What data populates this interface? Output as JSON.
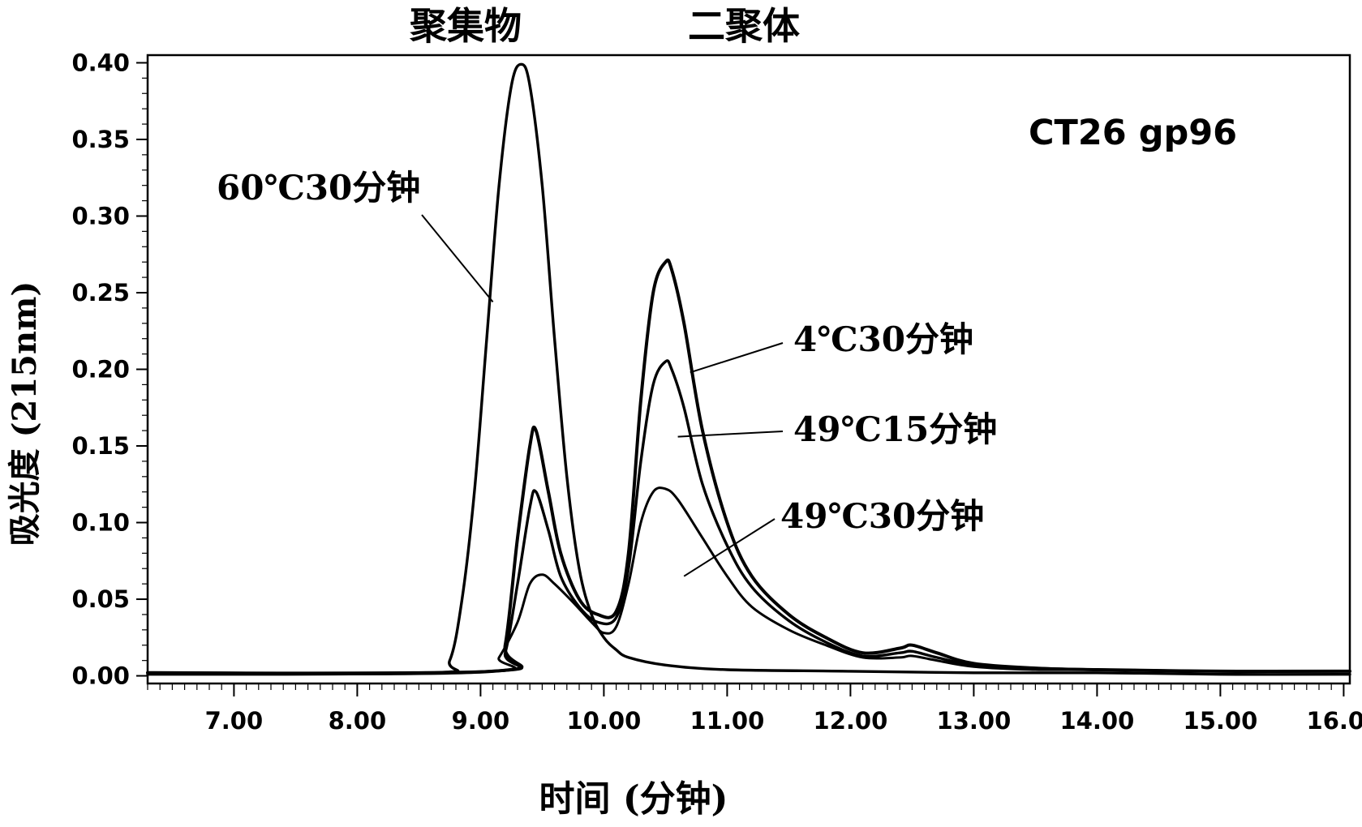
{
  "chart_data": {
    "type": "line",
    "top_labels": [
      "聚集物",
      "二聚体"
    ],
    "annotation": "CT26 gp96",
    "xlabel": "时间 (分钟)",
    "ylabel": "吸光度 (215nm)",
    "xlim": [
      6.3,
      16.05
    ],
    "ylim": [
      -0.005,
      0.405
    ],
    "xticks": [
      7.0,
      8.0,
      9.0,
      10.0,
      11.0,
      12.0,
      13.0,
      14.0,
      15.0,
      16.0
    ],
    "xtick_labels": [
      "7.00",
      "8.00",
      "9.00",
      "10.00",
      "11.00",
      "12.00",
      "13.00",
      "14.00",
      "15.00",
      "16.00"
    ],
    "yticks": [
      0.0,
      0.05,
      0.1,
      0.15,
      0.2,
      0.25,
      0.3,
      0.35,
      0.4
    ],
    "ytick_labels": [
      "0.00",
      "0.05",
      "0.10",
      "0.15",
      "0.20",
      "0.25",
      "0.30",
      "0.35",
      "0.40"
    ],
    "grid": false,
    "legend": "none",
    "series": [
      {
        "name": "60℃30分钟",
        "x": [
          6.3,
          8.6,
          8.75,
          8.85,
          8.95,
          9.05,
          9.15,
          9.25,
          9.33,
          9.4,
          9.5,
          9.6,
          9.7,
          9.8,
          9.9,
          10.0,
          10.1,
          10.2,
          10.5,
          11.0,
          12.0,
          13.0,
          14.0,
          15.0,
          16.05
        ],
        "y": [
          0.001,
          0.002,
          0.01,
          0.05,
          0.12,
          0.22,
          0.32,
          0.385,
          0.399,
          0.385,
          0.32,
          0.22,
          0.13,
          0.07,
          0.04,
          0.025,
          0.017,
          0.012,
          0.007,
          0.004,
          0.003,
          0.002,
          0.002,
          0.001,
          0.001
        ]
      },
      {
        "name": "4℃30分钟",
        "x": [
          6.3,
          9.1,
          9.2,
          9.3,
          9.4,
          9.45,
          9.55,
          9.65,
          9.8,
          9.95,
          10.1,
          10.2,
          10.3,
          10.4,
          10.5,
          10.55,
          10.65,
          10.8,
          11.0,
          11.2,
          11.5,
          11.8,
          12.1,
          12.4,
          12.5,
          12.7,
          13.0,
          13.5,
          14.0,
          15.0,
          16.05
        ],
        "y": [
          0.002,
          0.003,
          0.02,
          0.09,
          0.15,
          0.16,
          0.12,
          0.08,
          0.05,
          0.04,
          0.042,
          0.08,
          0.18,
          0.25,
          0.27,
          0.265,
          0.23,
          0.16,
          0.1,
          0.065,
          0.04,
          0.025,
          0.015,
          0.018,
          0.02,
          0.015,
          0.008,
          0.005,
          0.004,
          0.003,
          0.003
        ]
      },
      {
        "name": "49℃15分钟",
        "x": [
          6.3,
          9.1,
          9.2,
          9.3,
          9.4,
          9.45,
          9.55,
          9.65,
          9.8,
          9.95,
          10.1,
          10.2,
          10.3,
          10.4,
          10.5,
          10.55,
          10.65,
          10.8,
          11.0,
          11.2,
          11.5,
          11.8,
          12.1,
          12.4,
          12.5,
          12.7,
          13.0,
          13.5,
          14.0,
          15.0,
          16.05
        ],
        "y": [
          0.002,
          0.003,
          0.015,
          0.06,
          0.11,
          0.12,
          0.095,
          0.065,
          0.045,
          0.035,
          0.038,
          0.07,
          0.14,
          0.19,
          0.205,
          0.2,
          0.175,
          0.125,
          0.085,
          0.058,
          0.036,
          0.022,
          0.013,
          0.015,
          0.016,
          0.012,
          0.007,
          0.005,
          0.004,
          0.003,
          0.003
        ]
      },
      {
        "name": "49℃30分钟",
        "x": [
          6.3,
          9.05,
          9.15,
          9.3,
          9.4,
          9.5,
          9.6,
          9.75,
          9.9,
          10.0,
          10.1,
          10.2,
          10.3,
          10.4,
          10.5,
          10.6,
          10.8,
          11.0,
          11.2,
          11.5,
          11.8,
          12.1,
          12.4,
          12.5,
          12.7,
          13.0,
          13.5,
          14.0,
          15.0,
          16.05
        ],
        "y": [
          0.002,
          0.003,
          0.012,
          0.035,
          0.06,
          0.066,
          0.06,
          0.048,
          0.035,
          0.028,
          0.032,
          0.06,
          0.1,
          0.12,
          0.122,
          0.115,
          0.09,
          0.065,
          0.045,
          0.03,
          0.02,
          0.012,
          0.012,
          0.013,
          0.01,
          0.006,
          0.004,
          0.004,
          0.003,
          0.003
        ]
      }
    ],
    "series_labels": [
      {
        "text": "60℃30分钟",
        "series": 0,
        "at": [
          9.1,
          0.244
        ]
      },
      {
        "text": "4℃30分钟",
        "series": 1,
        "at": [
          10.7,
          0.198
        ]
      },
      {
        "text": "49℃15分钟",
        "series": 2,
        "at": [
          10.6,
          0.156
        ]
      },
      {
        "text": "49℃30分钟",
        "series": 3,
        "at": [
          10.65,
          0.065
        ]
      }
    ]
  }
}
